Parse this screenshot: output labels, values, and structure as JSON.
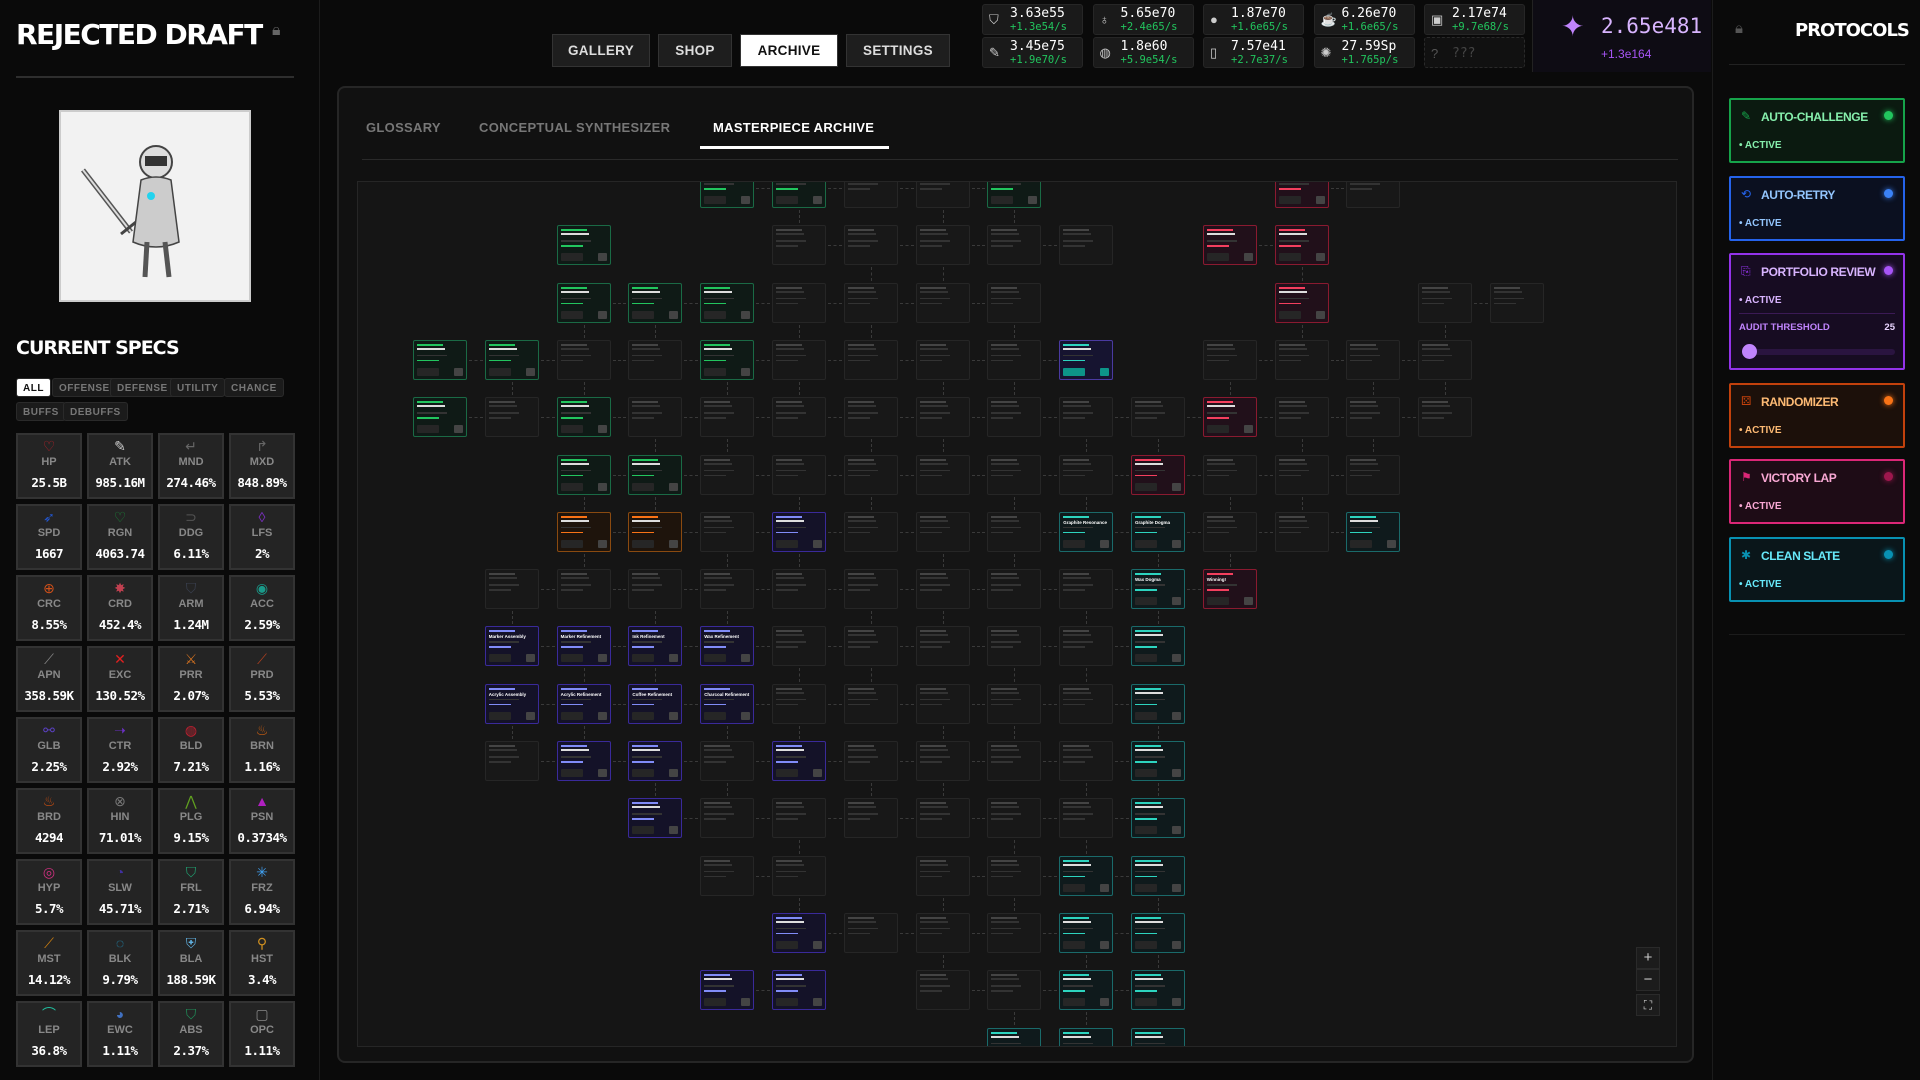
{
  "left": {
    "title": "REJECTED DRAFT",
    "specs_title": "CURRENT SPECS",
    "filters": [
      {
        "label": "ALL",
        "active": true
      },
      {
        "label": "OFFENSE"
      },
      {
        "label": "DEFENSE"
      },
      {
        "label": "UTILITY"
      },
      {
        "label": "CHANCE"
      },
      {
        "label": "BUFFS"
      },
      {
        "label": "DEBUFFS"
      }
    ],
    "stats": [
      {
        "label": "HP",
        "value": "25.5B",
        "icon": "♡",
        "color": "#c0202a"
      },
      {
        "label": "ATK",
        "value": "985.16M",
        "icon": "✎",
        "color": "#cccccc"
      },
      {
        "label": "MND",
        "value": "274.46%",
        "icon": "↵",
        "color": "#666666"
      },
      {
        "label": "MXD",
        "value": "848.89%",
        "icon": "↱",
        "color": "#666666"
      },
      {
        "label": "SPD",
        "value": "1667",
        "icon": "➶",
        "color": "#2255cc"
      },
      {
        "label": "RGN",
        "value": "4063.74",
        "icon": "♡",
        "color": "#1a8a3a"
      },
      {
        "label": "DDG",
        "value": "6.11%",
        "icon": "⊃",
        "color": "#555555"
      },
      {
        "label": "LFS",
        "value": "2%",
        "icon": "◊",
        "color": "#7a2fc0"
      },
      {
        "label": "CRC",
        "value": "8.55%",
        "icon": "⊕",
        "color": "#d0501a"
      },
      {
        "label": "CRD",
        "value": "452.4%",
        "icon": "✸",
        "color": "#c04050"
      },
      {
        "label": "ARM",
        "value": "1.24M",
        "icon": "⛉",
        "color": "#3a4050"
      },
      {
        "label": "ACC",
        "value": "2.59%",
        "icon": "◉",
        "color": "#1a9a8a"
      },
      {
        "label": "APN",
        "value": "358.59K",
        "icon": "⟋",
        "color": "#888888"
      },
      {
        "label": "EXC",
        "value": "130.52%",
        "icon": "✕",
        "color": "#e02020"
      },
      {
        "label": "PRR",
        "value": "2.07%",
        "icon": "⚔",
        "color": "#d07020"
      },
      {
        "label": "PRD",
        "value": "5.53%",
        "icon": "⟋",
        "color": "#b04020"
      },
      {
        "label": "GLB",
        "value": "2.25%",
        "icon": "⚯",
        "color": "#5a40c0"
      },
      {
        "label": "CTR",
        "value": "2.92%",
        "icon": "➝",
        "color": "#6a30c0"
      },
      {
        "label": "BLD",
        "value": "7.21%",
        "icon": "◍",
        "color": "#c02030"
      },
      {
        "label": "BRN",
        "value": "1.16%",
        "icon": "♨",
        "color": "#d06010"
      },
      {
        "label": "BRD",
        "value": "4294",
        "icon": "♨",
        "color": "#d05010"
      },
      {
        "label": "HIN",
        "value": "71.01%",
        "icon": "⊗",
        "color": "#777777"
      },
      {
        "label": "PLG",
        "value": "9.15%",
        "icon": "⋀",
        "color": "#60a020"
      },
      {
        "label": "PSN",
        "value": "0.3734%",
        "icon": "▲",
        "color": "#b020c0"
      },
      {
        "label": "HYP",
        "value": "5.7%",
        "icon": "◎",
        "color": "#d03080"
      },
      {
        "label": "SLW",
        "value": "45.71%",
        "icon": "◔",
        "color": "#4030a0"
      },
      {
        "label": "FRL",
        "value": "2.71%",
        "icon": "⛉",
        "color": "#20a070"
      },
      {
        "label": "FRZ",
        "value": "6.94%",
        "icon": "✳",
        "color": "#40a0f0"
      },
      {
        "label": "MST",
        "value": "14.12%",
        "icon": "⟋",
        "color": "#d08010"
      },
      {
        "label": "BLK",
        "value": "9.79%",
        "icon": "◌",
        "color": "#20a0d0"
      },
      {
        "label": "BLA",
        "value": "188.59K",
        "icon": "⛨",
        "color": "#60b0e0"
      },
      {
        "label": "HST",
        "value": "3.4%",
        "icon": "⚲",
        "color": "#d09020"
      },
      {
        "label": "LEP",
        "value": "36.8%",
        "icon": "⌒",
        "color": "#20c0a0"
      },
      {
        "label": "EWC",
        "value": "1.11%",
        "icon": "◕",
        "color": "#4070c0"
      },
      {
        "label": "ABS",
        "value": "2.37%",
        "icon": "⛉",
        "color": "#20905a"
      },
      {
        "label": "OPC",
        "value": "1.11%",
        "icon": "▢",
        "color": "#888888"
      }
    ]
  },
  "nav": {
    "tabs": [
      {
        "label": "GALLERY"
      },
      {
        "label": "SHOP"
      },
      {
        "label": "ARCHIVE",
        "active": true
      },
      {
        "label": "SETTINGS"
      }
    ]
  },
  "resources": [
    {
      "icon": "eraser",
      "glyph": "⛉",
      "value": "3.63e55",
      "rate": "+1.3e54/s"
    },
    {
      "icon": "candle",
      "glyph": "♁",
      "value": "5.65e70",
      "rate": "+2.4e65/s"
    },
    {
      "icon": "stone",
      "glyph": "●",
      "value": "1.87e70",
      "rate": "+1.6e65/s"
    },
    {
      "icon": "mug",
      "glyph": "☕",
      "value": "6.26e70",
      "rate": "+1.6e65/s"
    },
    {
      "icon": "jar",
      "glyph": "▣",
      "value": "2.17e74",
      "rate": "+9.7e68/s"
    },
    {
      "icon": "pencil",
      "glyph": "✎",
      "value": "3.45e75",
      "rate": "+1.9e70/s"
    },
    {
      "icon": "palette",
      "glyph": "◍",
      "value": "1.8e60",
      "rate": "+5.9e54/s"
    },
    {
      "icon": "spray-can",
      "glyph": "▯",
      "value": "7.57e41",
      "rate": "+2.7e37/s"
    },
    {
      "icon": "sparkle",
      "glyph": "✺",
      "value": "27.59Sp",
      "rate": "+1.765p/s"
    },
    {
      "icon": "unknown",
      "glyph": "?",
      "value": "???",
      "rate": "",
      "locked": true
    }
  ],
  "premium": {
    "value": "2.65e481",
    "rate": "+1.3e164",
    "color": "#c084fc"
  },
  "archive": {
    "subtabs": [
      {
        "label": "GLOSSARY"
      },
      {
        "label": "CONCEPTUAL SYNTHESIZER"
      },
      {
        "label": "MASTERPIECE ARCHIVE",
        "active": true
      }
    ],
    "node_colors": {
      "g": {
        "border": "#1a6a45",
        "bg": "#0f1a16",
        "accent": "#22c55e"
      },
      "t": {
        "border": "#1a6a6a",
        "bg": "#0f1a1c",
        "accent": "#2dd4bf"
      },
      "i": {
        "border": "#3a2a9a",
        "bg": "#141228",
        "accent": "#818cf8"
      },
      "o": {
        "border": "#8a4a10",
        "bg": "#1e140c",
        "accent": "#f97316"
      },
      "r": {
        "border": "#8a1a30",
        "bg": "#21101a",
        "accent": "#f43f5e"
      },
      "v": {
        "border": "#4a3aa0",
        "bg": "#161430",
        "accent": "#2dd4bf"
      },
      "d": {
        "border": "#262626",
        "bg": "#181818",
        "accent": "#444444"
      }
    },
    "node_grid": [
      "....ggddg...rd..",
      "..g..ddddd.rr...",
      "..gggdddd...r.dd",
      "ggddgddddv.dddd.",
      "gdgddddddddrddd.",
      "..ggddddddrddd..",
      "..oodidddttddt..",
      ".dddddddddtr....",
      ".iiiidddddt.....",
      ".iiiidddddt.....",
      ".diididdddt.....",
      "...iddddddt.....",
      "....dd.ddtt.....",
      ".....idddtt.....",
      "....ii.ddtt.....",
      "........ttt....."
    ],
    "named_nodes": [
      {
        "row": 6,
        "col": 9,
        "name": "Graphite Resonance"
      },
      {
        "row": 6,
        "col": 10,
        "name": "Graphite Dogma"
      },
      {
        "row": 7,
        "col": 10,
        "name": "Wax Dogma"
      },
      {
        "row": 7,
        "col": 11,
        "name": "Winning!"
      },
      {
        "row": 8,
        "col": 1,
        "name": "Marker Assembly"
      },
      {
        "row": 8,
        "col": 2,
        "name": "Marker Refinement"
      },
      {
        "row": 8,
        "col": 3,
        "name": "Ink Refinement"
      },
      {
        "row": 8,
        "col": 4,
        "name": "Wax Refinement"
      },
      {
        "row": 9,
        "col": 1,
        "name": "Acrylic Assembly"
      },
      {
        "row": 9,
        "col": 2,
        "name": "Acrylic Refinement"
      },
      {
        "row": 9,
        "col": 3,
        "name": "Coffee Refinement"
      },
      {
        "row": 9,
        "col": 4,
        "name": "Charcoal Refinement"
      }
    ],
    "zoom_controls": {
      "zoom_in": "+",
      "zoom_out": "−",
      "fit": "⛶"
    }
  },
  "protocols": {
    "title": "PROTOCOLS",
    "cards": [
      {
        "name": "AUTO-CHALLENGE",
        "status": "• ACTIVE",
        "icon": "✎",
        "border": "#16a34a",
        "bg": "#0b1a10",
        "text": "#86efac",
        "dot": "#22c55e"
      },
      {
        "name": "AUTO-RETRY",
        "status": "• ACTIVE",
        "icon": "⟲",
        "border": "#2563eb",
        "bg": "#0b1020",
        "text": "#93c5fd",
        "dot": "#3b82f6"
      },
      {
        "name": "PORTFOLIO REVIEW",
        "status": "• ACTIVE",
        "icon": "⎘",
        "border": "#9333ea",
        "bg": "#170c22",
        "text": "#d8b4fe",
        "dot": "#a855f7",
        "setting": {
          "label": "AUDIT THRESHOLD",
          "value": "25",
          "level_percent": 4
        }
      },
      {
        "name": "RANDOMIZER",
        "status": "• ACTIVE",
        "icon": "⚄",
        "border": "#c2410c",
        "bg": "#1c100a",
        "text": "#fdba74",
        "dot": "#f97316"
      },
      {
        "name": "VICTORY LAP",
        "status": "• ACTIVE",
        "icon": "⚑",
        "border": "#db2777",
        "bg": "#1e0c16",
        "text": "#f9a8d4",
        "dot": "#9d174d"
      },
      {
        "name": "CLEAN SLATE",
        "status": "• ACTIVE",
        "icon": "✱",
        "border": "#0891b2",
        "bg": "#0a161a",
        "text": "#67e8f9",
        "dot": "#0891b2"
      }
    ]
  }
}
